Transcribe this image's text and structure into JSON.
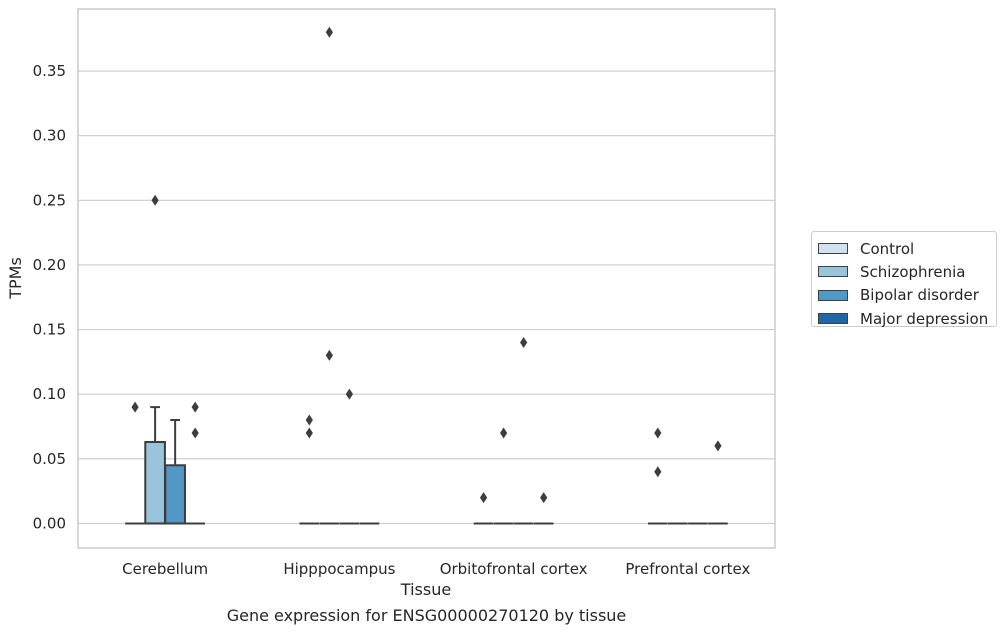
{
  "chart_data": {
    "type": "box",
    "xlabel": "Tissue",
    "ylabel": "TPMs",
    "categories": [
      "Cerebellum",
      "Hipppocampus",
      "Orbitofrontal cortex",
      "Prefrontal cortex"
    ],
    "yticks": [
      "0.00",
      "0.05",
      "0.10",
      "0.15",
      "0.20",
      "0.25",
      "0.30",
      "0.35"
    ],
    "ylim": [
      -0.019,
      0.398
    ],
    "grid": true,
    "legend_position": "right",
    "series": [
      {
        "name": "Control",
        "color": "#d1e1ef",
        "boxes": [
          {
            "q1": 0,
            "median": 0,
            "q3": 0,
            "whisker_low": 0,
            "whisker_high": 0,
            "outliers": [
              0.09
            ]
          },
          {
            "q1": 0,
            "median": 0,
            "q3": 0,
            "whisker_low": 0,
            "whisker_high": 0,
            "outliers": [
              0.07,
              0.08
            ]
          },
          {
            "q1": 0,
            "median": 0,
            "q3": 0,
            "whisker_low": 0,
            "whisker_high": 0,
            "outliers": [
              0.02
            ]
          },
          {
            "q1": 0,
            "median": 0,
            "q3": 0,
            "whisker_low": 0,
            "whisker_high": 0,
            "outliers": [
              0.04,
              0.07
            ]
          }
        ]
      },
      {
        "name": "Schizophrenia",
        "color": "#9ac3dc",
        "boxes": [
          {
            "q1": 0,
            "median": 0,
            "q3": 0.063,
            "whisker_low": 0,
            "whisker_high": 0.09,
            "outliers": [
              0.25
            ]
          },
          {
            "q1": 0,
            "median": 0,
            "q3": 0,
            "whisker_low": 0,
            "whisker_high": 0,
            "outliers": [
              0.13,
              0.38
            ]
          },
          {
            "q1": 0,
            "median": 0,
            "q3": 0,
            "whisker_low": 0,
            "whisker_high": 0,
            "outliers": [
              0.07
            ]
          },
          {
            "q1": 0,
            "median": 0,
            "q3": 0,
            "whisker_low": 0,
            "whisker_high": 0,
            "outliers": []
          }
        ]
      },
      {
        "name": "Bipolar disorder",
        "color": "#5198c6",
        "boxes": [
          {
            "q1": 0,
            "median": 0,
            "q3": 0.045,
            "whisker_low": 0,
            "whisker_high": 0.08,
            "outliers": []
          },
          {
            "q1": 0,
            "median": 0,
            "q3": 0,
            "whisker_low": 0,
            "whisker_high": 0,
            "outliers": [
              0.1
            ]
          },
          {
            "q1": 0,
            "median": 0,
            "q3": 0,
            "whisker_low": 0,
            "whisker_high": 0,
            "outliers": [
              0.14
            ]
          },
          {
            "q1": 0,
            "median": 0,
            "q3": 0,
            "whisker_low": 0,
            "whisker_high": 0,
            "outliers": []
          }
        ]
      },
      {
        "name": "Major depression",
        "color": "#1f66a6",
        "boxes": [
          {
            "q1": 0,
            "median": 0,
            "q3": 0,
            "whisker_low": 0,
            "whisker_high": 0,
            "outliers": [
              0.07,
              0.09
            ]
          },
          {
            "q1": 0,
            "median": 0,
            "q3": 0,
            "whisker_low": 0,
            "whisker_high": 0,
            "outliers": []
          },
          {
            "q1": 0,
            "median": 0,
            "q3": 0,
            "whisker_low": 0,
            "whisker_high": 0,
            "outliers": [
              0.02
            ]
          },
          {
            "q1": 0,
            "median": 0,
            "q3": 0,
            "whisker_low": 0,
            "whisker_high": 0,
            "outliers": [
              0.06
            ]
          }
        ]
      }
    ],
    "caption": "Gene expression for ENSG00000270120 by tissue"
  }
}
